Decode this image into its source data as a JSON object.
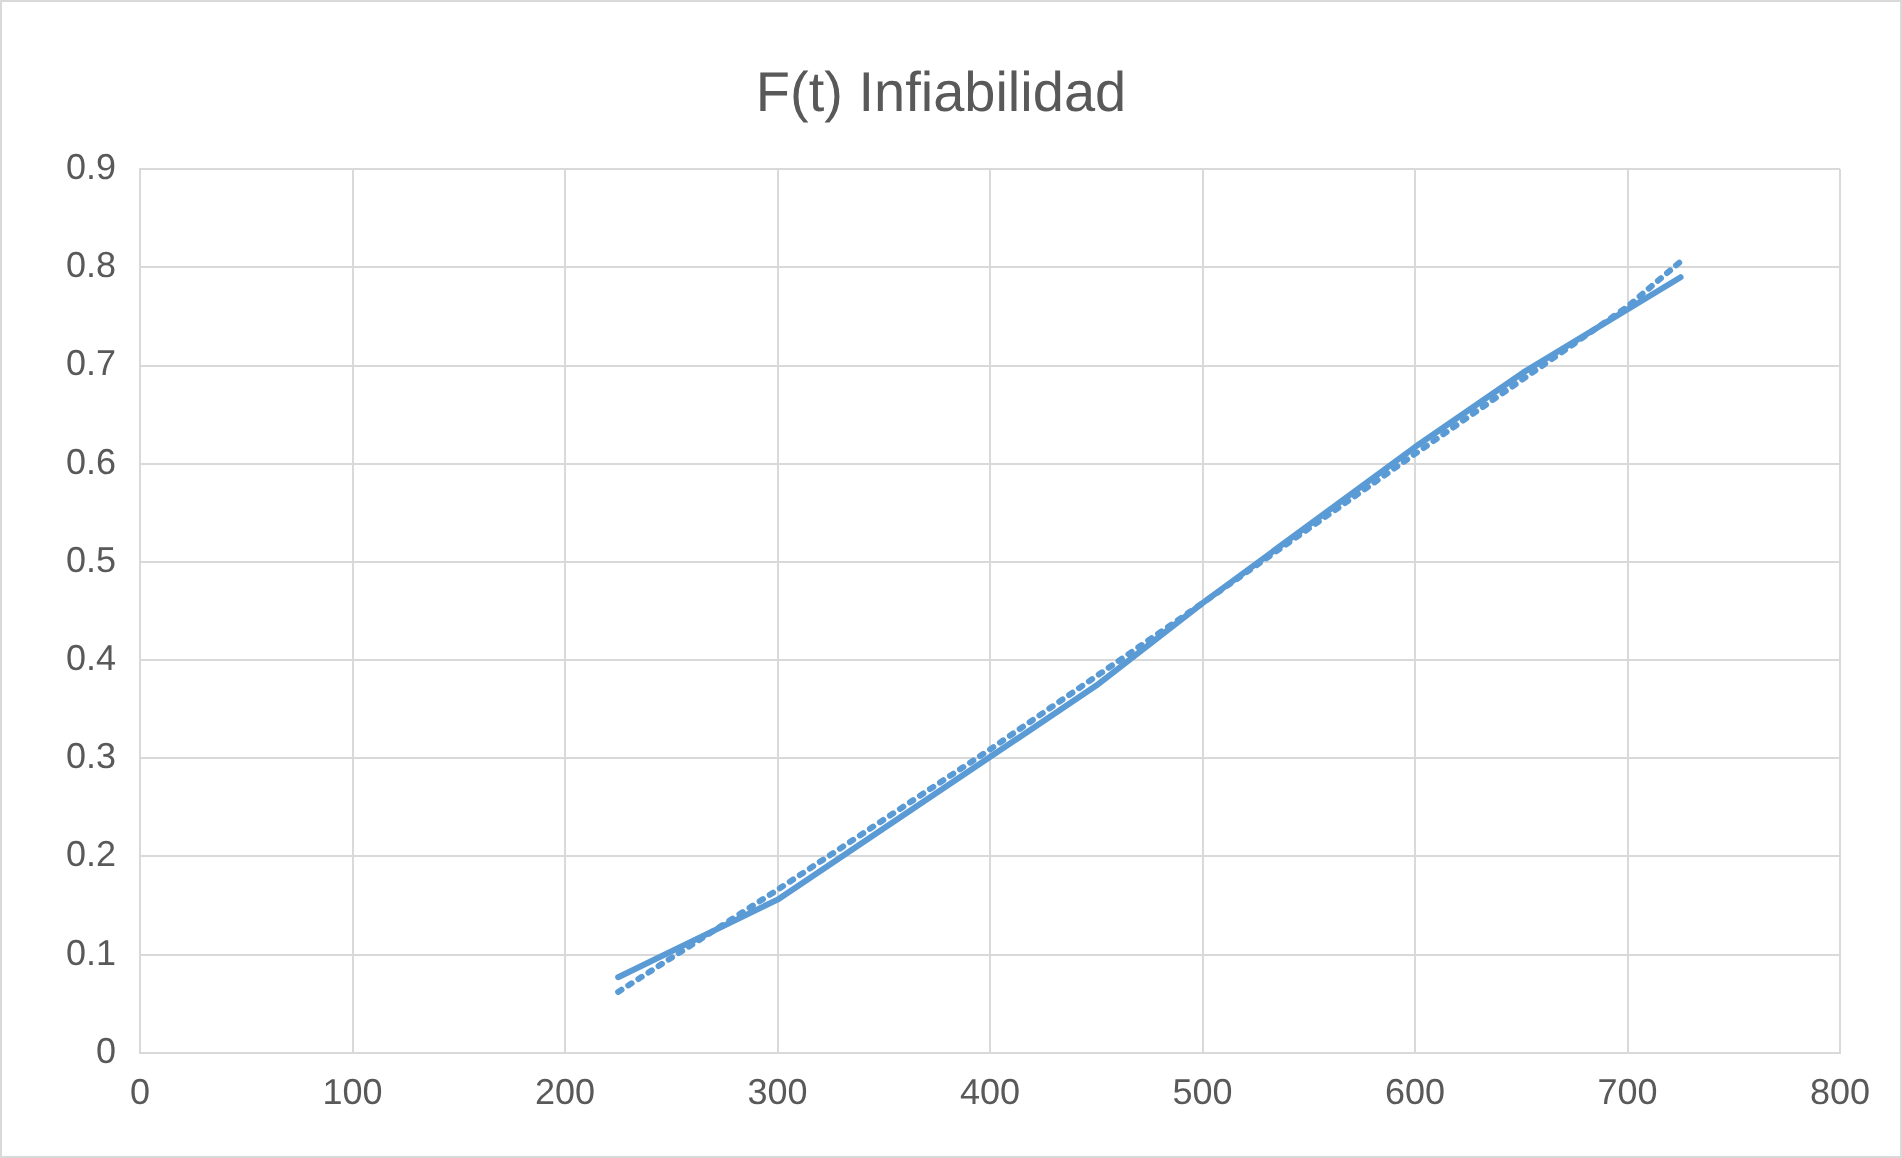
{
  "chart_data": {
    "type": "line",
    "title": "F(t) Infiabilidad",
    "series": [
      {
        "color": "#5b9bd5",
        "line_style": "solid",
        "x": [
          225,
          300,
          450,
          500,
          600,
          651,
          725
        ],
        "values": [
          0.077,
          0.156,
          0.374,
          0.458,
          0.617,
          0.693,
          0.79
        ]
      },
      {
        "color": "#5b9bd5",
        "line_style": "dotted",
        "x": [
          225,
          300,
          400,
          500,
          600,
          700,
          725
        ],
        "values": [
          0.062,
          0.166,
          0.309,
          0.458,
          0.61,
          0.76,
          0.806
        ]
      }
    ],
    "xlim": [
      0,
      800
    ],
    "xticks": [
      0,
      100,
      200,
      300,
      400,
      500,
      600,
      700,
      800
    ],
    "ylim": [
      0,
      0.9
    ],
    "yticks": [
      0,
      0.1,
      0.2,
      0.3,
      0.4,
      0.5,
      0.6,
      0.7,
      0.8,
      0.9
    ],
    "grid": true,
    "legend": false,
    "marker": "none"
  }
}
